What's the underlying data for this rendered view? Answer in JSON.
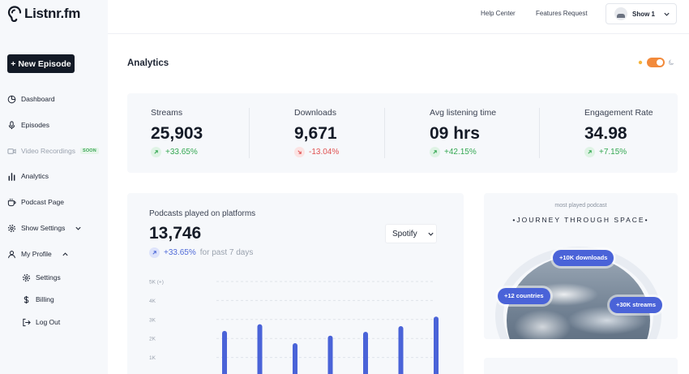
{
  "brand": {
    "name": "Listnr.fm"
  },
  "sidebar": {
    "new_episode_label": "+ New Episode",
    "items": [
      {
        "label": "Dashboard",
        "icon": "dashboard-icon"
      },
      {
        "label": "Episodes",
        "icon": "microphone-icon"
      },
      {
        "label": "Video Recordings",
        "icon": "video-icon",
        "badge": "SOON"
      },
      {
        "label": "Analytics",
        "icon": "bar-chart-icon"
      },
      {
        "label": "Podcast Page",
        "icon": "podcast-page-icon"
      },
      {
        "label": "Show Settings",
        "icon": "gear-icon"
      },
      {
        "label": "My Profile",
        "icon": "user-icon"
      }
    ],
    "profile_items": [
      {
        "label": "Settings",
        "icon": "gear-icon"
      },
      {
        "label": "Billing",
        "icon": "dollar-icon"
      },
      {
        "label": "Log Out",
        "icon": "logout-icon"
      }
    ]
  },
  "topbar": {
    "help_center": "Help Center",
    "features_request": "Features Request",
    "show_selector": "Show 1"
  },
  "page": {
    "title": "Analytics"
  },
  "stats": [
    {
      "label": "Streams",
      "value": "25,903",
      "change": "+33.65%",
      "trend": "up"
    },
    {
      "label": "Downloads",
      "value": "9,671",
      "change": "-13.04%",
      "trend": "down"
    },
    {
      "label": "Avg listening time",
      "value": "09 hrs",
      "change": "+42.15%",
      "trend": "up"
    },
    {
      "label": "Engagement Rate",
      "value": "34.98",
      "change": "+7.15%",
      "trend": "up"
    }
  ],
  "platforms": {
    "title": "Podcasts played on platforms",
    "value": "13,746",
    "change": "+33.65%",
    "period": "for past 7 days",
    "platform_selected": "Spotify"
  },
  "chart_data": {
    "type": "bar",
    "title": "",
    "ytick_labels": [
      "5K (+)",
      "4K",
      "3K",
      "2K",
      "1K"
    ],
    "ylim": [
      0,
      5000
    ],
    "values": [
      2400,
      2750,
      1750,
      2150,
      2350,
      2650,
      3150
    ],
    "bar_color": "#4a63d8",
    "grid": true
  },
  "most_played": {
    "kicker": "most played podcast",
    "title": "•JOURNEY THROUGH SPACE•",
    "badges": [
      "+10K downloads",
      "+12 countries",
      "+30K streams"
    ]
  },
  "colors": {
    "accent": "#4a63d8",
    "up": "#35a853",
    "down": "#e05252",
    "toggle": "#f28a3b"
  }
}
